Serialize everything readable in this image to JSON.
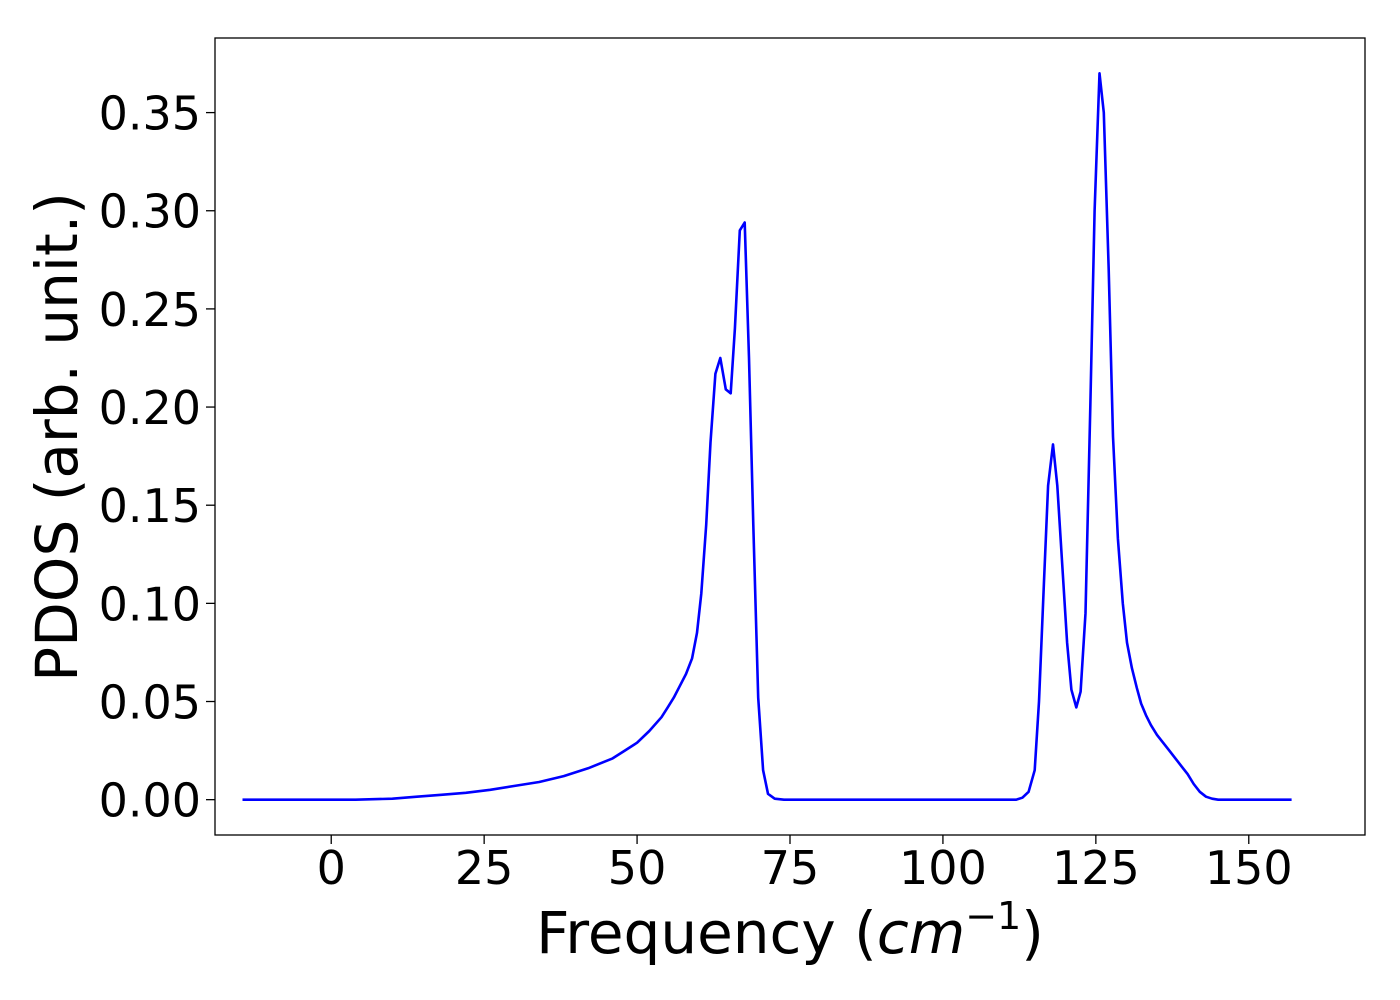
{
  "chart_data": {
    "type": "line",
    "title": "",
    "xlabel": "Frequency",
    "xlabel_unit_base": "cm",
    "xlabel_unit_exp": "−1",
    "ylabel": "PDOS (arb. unit.)",
    "xlim": [
      -19,
      169
    ],
    "ylim": [
      -0.018,
      0.388
    ],
    "xticks": [
      0,
      25,
      50,
      75,
      100,
      125,
      150
    ],
    "xtick_labels": [
      "0",
      "25",
      "50",
      "75",
      "100",
      "125",
      "150"
    ],
    "yticks": [
      0.0,
      0.05,
      0.1,
      0.15,
      0.2,
      0.25,
      0.3,
      0.35
    ],
    "ytick_labels": [
      "0.00",
      "0.05",
      "0.10",
      "0.15",
      "0.20",
      "0.25",
      "0.30",
      "0.35"
    ],
    "grid": false,
    "legend": "none",
    "series": [
      {
        "color": "#0000ff",
        "x": [
          -14.5,
          0,
          4,
          10,
          14,
          18,
          22,
          26,
          30,
          34,
          38,
          42,
          46,
          48,
          50,
          52,
          54,
          55,
          56,
          57,
          58,
          59,
          59.8,
          60.5,
          61.3,
          62,
          62.8,
          63.6,
          64.5,
          65.3,
          66,
          66.8,
          67.6,
          68.3,
          69,
          69.8,
          70.6,
          71.4,
          72.5,
          74,
          80,
          100,
          112,
          113,
          114,
          115,
          115.7,
          116.5,
          117.2,
          118,
          118.7,
          119.5,
          120.3,
          121,
          121.8,
          122.5,
          123.3,
          124.1,
          124.8,
          125.6,
          126.3,
          127.1,
          127.8,
          128.6,
          129.4,
          130.1,
          130.9,
          131.7,
          132.4,
          133.2,
          134,
          135,
          136,
          137,
          138,
          139,
          140,
          141,
          142,
          143,
          144,
          145,
          146,
          148,
          150,
          157
        ],
        "y": [
          0.0,
          0.0,
          0.0,
          0.0005,
          0.0015,
          0.0025,
          0.0035,
          0.005,
          0.007,
          0.009,
          0.012,
          0.016,
          0.021,
          0.025,
          0.029,
          0.035,
          0.042,
          0.047,
          0.052,
          0.058,
          0.064,
          0.072,
          0.085,
          0.105,
          0.14,
          0.182,
          0.217,
          0.225,
          0.209,
          0.207,
          0.24,
          0.29,
          0.294,
          0.225,
          0.14,
          0.052,
          0.015,
          0.003,
          0.0005,
          0.0,
          0.0,
          0.0,
          0.0,
          0.001,
          0.004,
          0.015,
          0.05,
          0.11,
          0.16,
          0.181,
          0.16,
          0.12,
          0.08,
          0.056,
          0.047,
          0.055,
          0.095,
          0.2,
          0.3,
          0.37,
          0.35,
          0.27,
          0.185,
          0.133,
          0.1,
          0.08,
          0.067,
          0.057,
          0.049,
          0.043,
          0.038,
          0.033,
          0.029,
          0.025,
          0.021,
          0.017,
          0.013,
          0.008,
          0.004,
          0.0015,
          0.0005,
          0.0,
          0.0,
          0.0,
          0.0,
          0.0
        ]
      }
    ]
  }
}
